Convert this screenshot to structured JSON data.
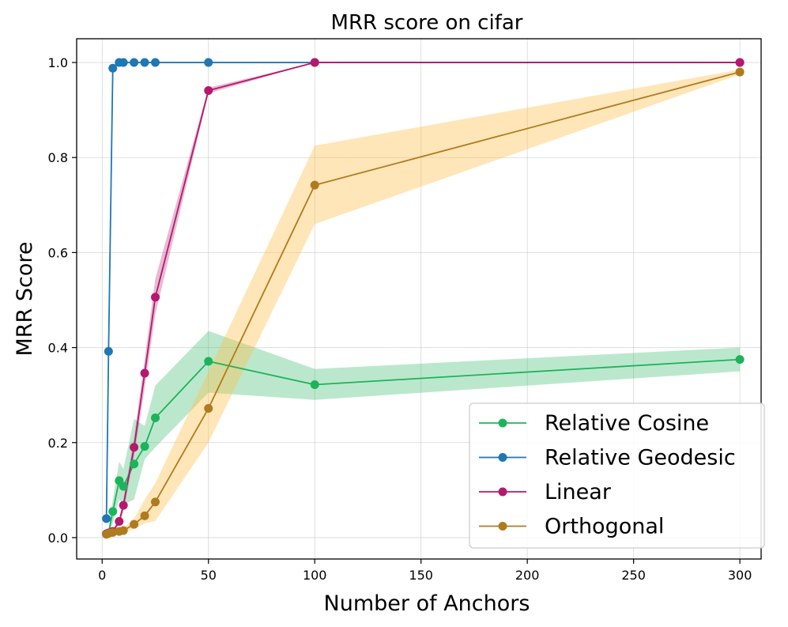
{
  "chart_data": {
    "type": "line",
    "title": "MRR score on cifar",
    "xlabel": "Number of Anchors",
    "ylabel": "MRR Score",
    "xlim": [
      -12,
      310
    ],
    "ylim": [
      -0.045,
      1.05
    ],
    "xticks": [
      0,
      50,
      100,
      150,
      200,
      250,
      300
    ],
    "xtick_labels": [
      "0",
      "50",
      "100",
      "150",
      "200",
      "250",
      "300"
    ],
    "yticks": [
      0.0,
      0.2,
      0.4,
      0.6,
      0.8,
      1.0
    ],
    "ytick_labels": [
      "0.0",
      "0.2",
      "0.4",
      "0.6",
      "0.8",
      "1.0"
    ],
    "grid": true,
    "legend_position": "bottom-right",
    "series": [
      {
        "name": "Relative Cosine",
        "color": "#1db35b",
        "x": [
          2,
          3,
          5,
          8,
          10,
          15,
          20,
          25,
          50,
          100,
          300
        ],
        "y": [
          0.008,
          0.01,
          0.055,
          0.12,
          0.108,
          0.155,
          0.192,
          0.252,
          0.371,
          0.322,
          0.375
        ],
        "lower": [
          0.006,
          0.007,
          0.03,
          0.08,
          0.07,
          0.08,
          0.165,
          0.19,
          0.305,
          0.29,
          0.35
        ],
        "upper": [
          0.012,
          0.014,
          0.08,
          0.16,
          0.145,
          0.25,
          0.235,
          0.32,
          0.435,
          0.355,
          0.4
        ]
      },
      {
        "name": "Relative Geodesic",
        "color": "#1f77b4",
        "x": [
          2,
          3,
          5,
          8,
          10,
          15,
          20,
          25,
          50,
          100,
          300
        ],
        "y": [
          0.04,
          0.392,
          0.988,
          1.0,
          1.0,
          1.0,
          1.0,
          1.0,
          1.0,
          1.0,
          1.0
        ],
        "lower": [
          0.04,
          0.392,
          0.988,
          1.0,
          1.0,
          1.0,
          1.0,
          1.0,
          1.0,
          1.0,
          1.0
        ],
        "upper": [
          0.04,
          0.392,
          0.988,
          1.0,
          1.0,
          1.0,
          1.0,
          1.0,
          1.0,
          1.0,
          1.0
        ]
      },
      {
        "name": "Linear",
        "color": "#b5186e",
        "x": [
          2,
          3,
          5,
          8,
          10,
          15,
          20,
          25,
          50,
          100,
          300
        ],
        "y": [
          0.008,
          0.01,
          0.013,
          0.034,
          0.068,
          0.19,
          0.346,
          0.506,
          0.941,
          1.0,
          1.0
        ],
        "lower": [
          0.006,
          0.008,
          0.011,
          0.028,
          0.055,
          0.17,
          0.315,
          0.47,
          0.935,
          1.0,
          1.0
        ],
        "upper": [
          0.01,
          0.012,
          0.016,
          0.04,
          0.08,
          0.21,
          0.375,
          0.545,
          0.947,
          1.0,
          1.0
        ]
      },
      {
        "name": "Orthogonal",
        "color": "#b07a1e",
        "fill": "#ffc04d",
        "x": [
          2,
          3,
          5,
          8,
          10,
          15,
          20,
          25,
          50,
          100,
          300
        ],
        "y": [
          0.007,
          0.009,
          0.011,
          0.013,
          0.015,
          0.028,
          0.046,
          0.075,
          0.272,
          0.742,
          0.98
        ],
        "lower": [
          0.005,
          0.006,
          0.008,
          0.01,
          0.01,
          0.018,
          0.03,
          0.035,
          0.2,
          0.66,
          0.975
        ],
        "upper": [
          0.009,
          0.012,
          0.014,
          0.016,
          0.02,
          0.04,
          0.08,
          0.115,
          0.35,
          0.825,
          0.985
        ]
      }
    ]
  }
}
